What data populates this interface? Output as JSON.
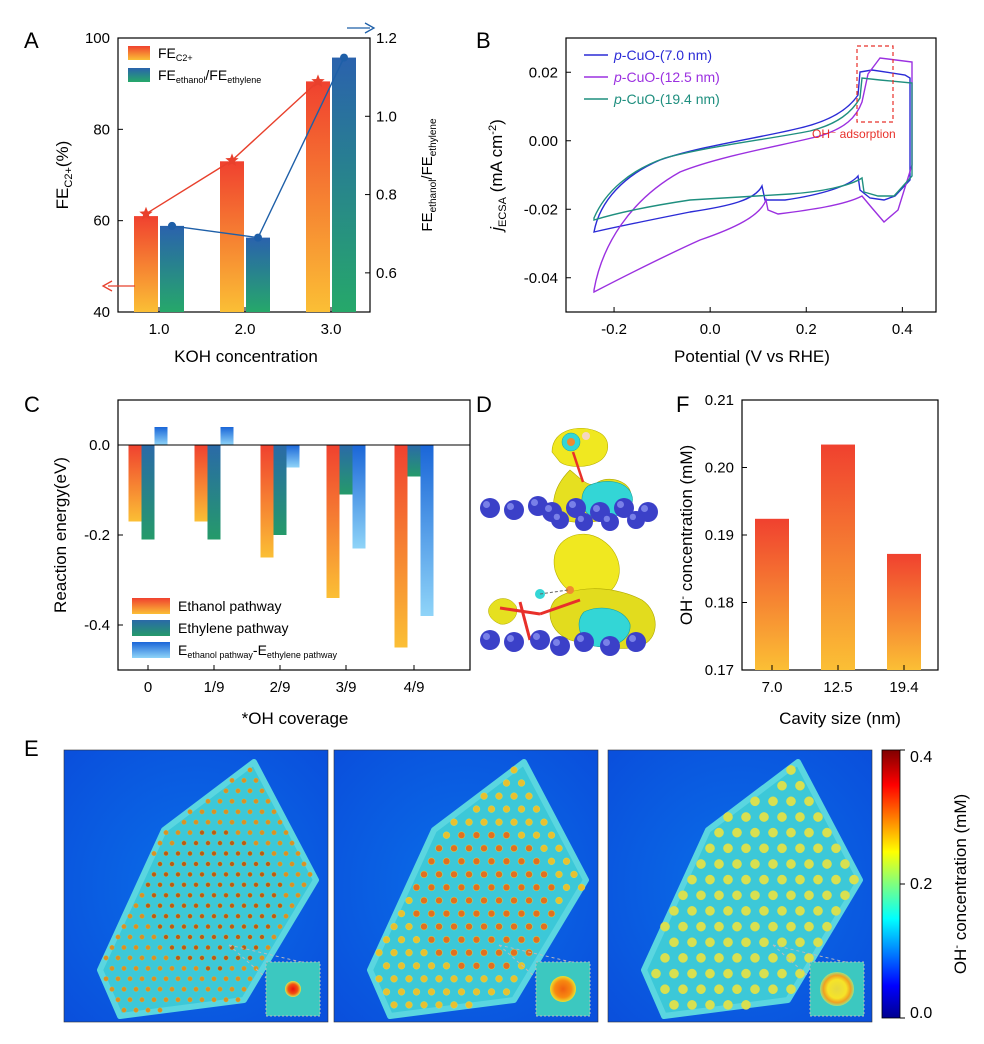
{
  "panels": {
    "A": {
      "label": "A"
    },
    "B": {
      "label": "B"
    },
    "C": {
      "label": "C"
    },
    "D": {
      "label": "D"
    },
    "E": {
      "label": "E"
    },
    "F": {
      "label": "F"
    }
  },
  "chart_data": [
    {
      "id": "A",
      "type": "bar",
      "xlabel": "KOH concentration",
      "ylabel_main": "FE",
      "ylabel_sub": "C2+",
      "ylabel_suffix": "(%)",
      "y2label_main1": "FE",
      "y2label_sub1": "ethanol",
      "y2label_mid": "/FE",
      "y2label_sub2": "ethylene",
      "categories": [
        "1.0",
        "2.0",
        "3.0"
      ],
      "ylim": [
        40,
        100
      ],
      "y2lim": [
        0.5,
        1.2
      ],
      "yticks": [
        "40",
        "60",
        "80",
        "100"
      ],
      "y2ticks": [
        "0.6",
        "0.8",
        "1.0",
        "1.2"
      ],
      "series": [
        {
          "name_main": "FE",
          "name_sub": "C2+",
          "values": [
            61,
            73,
            90.5
          ],
          "line_values": [
            61.5,
            73.2,
            90.5
          ],
          "color": "#f04a3a"
        },
        {
          "name_main": "FE",
          "name_sub": "ethanol",
          "name_mid": "/FE",
          "name_sub2": "ethylene",
          "values": [
            0.72,
            0.69,
            1.15
          ],
          "line_values": [
            0.72,
            0.69,
            1.15
          ],
          "color": "#2a66b0"
        }
      ]
    },
    {
      "id": "B",
      "type": "line",
      "xlabel": "Potential (V vs RHE)",
      "ylabel_main": "j",
      "ylabel_sub": "ECSA",
      "ylabel_suffix": " (mA cm",
      "ylabel_sup": "-2",
      "ylabel_end": ")",
      "xlim": [
        -0.3,
        0.47
      ],
      "ylim": [
        -0.05,
        0.03
      ],
      "xticks": [
        "-0.2",
        "0.0",
        "0.2",
        "0.4"
      ],
      "yticks": [
        "-0.04",
        "-0.02",
        "0.00",
        "0.02"
      ],
      "annotation": "OH⁻ adsorption",
      "series": [
        {
          "name_italic": "p",
          "name": "-CuO-(7.0 nm)",
          "color": "#2b2bd6"
        },
        {
          "name_italic": "p",
          "name": "-CuO-(12.5 nm)",
          "color": "#9b30e0"
        },
        {
          "name_italic": "p",
          "name": "-CuO-(19.4 nm)",
          "color": "#1f8f7f"
        }
      ]
    },
    {
      "id": "C",
      "type": "bar",
      "xlabel": "*OH coverage",
      "ylabel": "Reaction energy(eV)",
      "categories": [
        "0",
        "1/9",
        "2/9",
        "3/9",
        "4/9"
      ],
      "ylim": [
        -0.5,
        0.1
      ],
      "yticks": [
        "0.0",
        "-0.2",
        "-0.4"
      ],
      "series": [
        {
          "name": "Ethanol pathway",
          "values": [
            -0.17,
            -0.17,
            -0.25,
            -0.34,
            -0.45
          ]
        },
        {
          "name": "Ethylene pathway",
          "values": [
            -0.21,
            -0.21,
            -0.2,
            -0.11,
            -0.07
          ]
        },
        {
          "name_main": "E",
          "name_sub": "ethanol pathway",
          "name_mid": "-E",
          "name_sub2": "ethylene pathway",
          "values": [
            0.04,
            0.04,
            -0.05,
            -0.23,
            -0.38
          ]
        }
      ]
    },
    {
      "id": "F",
      "type": "bar",
      "xlabel": "Cavity size (nm)",
      "ylabel_main": "OH",
      "ylabel_sup": "-",
      "ylabel_suffix": " concentration (mM)",
      "categories": [
        "7.0",
        "12.5",
        "19.4"
      ],
      "values": [
        0.1924,
        0.2034,
        0.1872
      ],
      "ylim": [
        0.17,
        0.21
      ],
      "yticks": [
        "0.17",
        "0.18",
        "0.19",
        "0.20",
        "0.21"
      ]
    },
    {
      "id": "E",
      "type": "heatmap",
      "colorbar_label_main": "OH",
      "colorbar_label_sup": "-",
      "colorbar_label_suffix": " concentration (mM)",
      "colorbar_range": [
        0.0,
        0.4
      ],
      "colorbar_ticks": [
        "0.4",
        "0.2",
        "0.0"
      ]
    }
  ]
}
